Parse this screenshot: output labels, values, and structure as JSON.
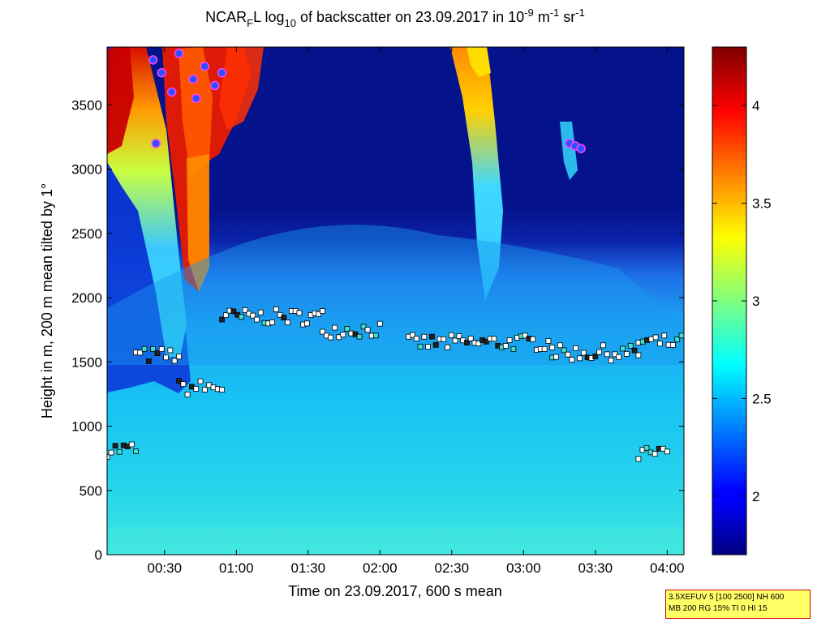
{
  "chart_data": {
    "type": "heatmap",
    "title_parts": [
      "NCAR",
      "F",
      "L log",
      "10",
      " of backscatter on 23.09.2017 in 10",
      "-9",
      " m",
      "-1",
      " sr",
      "-1"
    ],
    "xlabel": "Time on 23.09.2017, 600 s mean",
    "ylabel": "Height in m, 200 m mean tilted by 1°",
    "xlim": [
      0.1,
      4.117
    ],
    "ylim": [
      0,
      3950
    ],
    "x_ticks": [
      {
        "value": 0.5,
        "label": "00:30"
      },
      {
        "value": 1.0,
        "label": "01:00"
      },
      {
        "value": 1.5,
        "label": "01:30"
      },
      {
        "value": 2.0,
        "label": "02:00"
      },
      {
        "value": 2.5,
        "label": "02:30"
      },
      {
        "value": 3.0,
        "label": "03:00"
      },
      {
        "value": 3.5,
        "label": "03:30"
      },
      {
        "value": 4.0,
        "label": "04:00"
      }
    ],
    "y_ticks": [
      0,
      500,
      1000,
      1500,
      2000,
      2500,
      3000,
      3500
    ],
    "colorbar": {
      "range": [
        1.7,
        4.3
      ],
      "ticks": [
        2,
        2.5,
        3,
        3.5,
        4
      ],
      "tick_labels": [
        "2",
        "2.5",
        "3",
        "3.5",
        "4"
      ],
      "colormap": "jet"
    },
    "layers_marked_heights": [
      {
        "start": 0.1,
        "end": 0.3,
        "height": 820,
        "trend": "decreasing to 700"
      },
      {
        "start": 0.3,
        "end": 0.6,
        "height": 1550
      },
      {
        "start": 0.6,
        "end": 0.9,
        "height": 1300
      },
      {
        "start": 0.9,
        "end": 1.6,
        "height": 1850
      },
      {
        "start": 1.6,
        "end": 2.0,
        "height": 1750
      },
      {
        "start": 2.2,
        "end": 3.2,
        "height": 1650
      },
      {
        "start": 3.2,
        "end": 3.8,
        "height": 1570
      },
      {
        "start": 3.8,
        "end": 4.1,
        "height": 1650
      },
      {
        "start": 3.8,
        "end": 4.0,
        "height": 780
      }
    ]
  },
  "info_box": {
    "line1": "3.5XEFUV 5 [100 2500] NH 600",
    "line2": "MB 200 RG 15% TI 0 HI 15"
  }
}
